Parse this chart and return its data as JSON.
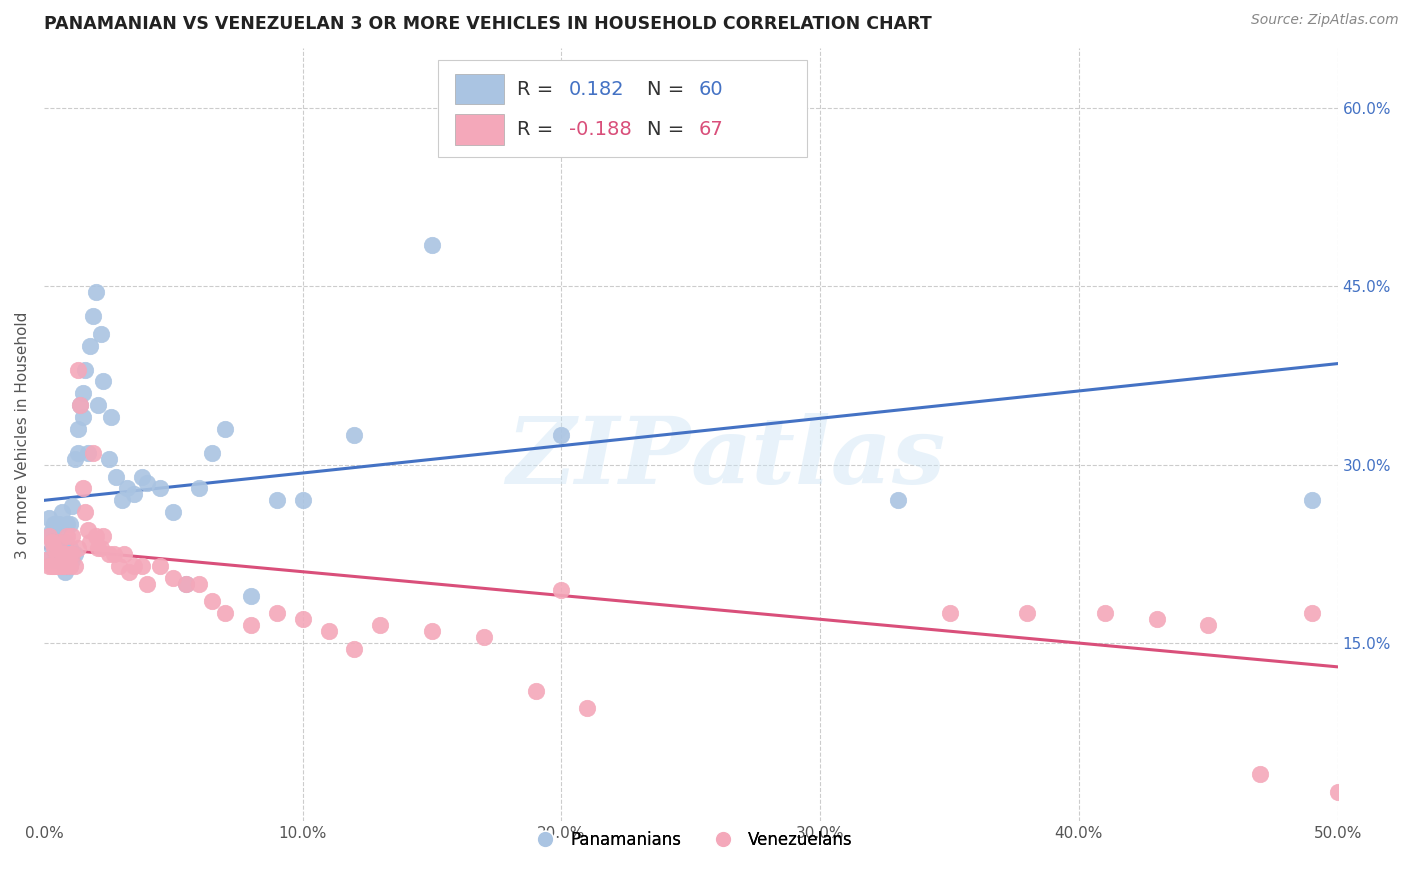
{
  "title": "PANAMANIAN VS VENEZUELAN 3 OR MORE VEHICLES IN HOUSEHOLD CORRELATION CHART",
  "source": "Source: ZipAtlas.com",
  "ylabel": "3 or more Vehicles in Household",
  "watermark": "ZIPatlas",
  "xlim": [
    0.0,
    0.5
  ],
  "ylim": [
    0.0,
    0.65
  ],
  "xticks": [
    0.0,
    0.1,
    0.2,
    0.3,
    0.4,
    0.5
  ],
  "xticklabels": [
    "0.0%",
    "10.0%",
    "20.0%",
    "30.0%",
    "40.0%",
    "50.0%"
  ],
  "yticks_right": [
    0.15,
    0.3,
    0.45,
    0.6
  ],
  "ytick_right_labels": [
    "15.0%",
    "30.0%",
    "45.0%",
    "60.0%"
  ],
  "color_pan": "#aac4e2",
  "color_ven": "#f4a8ba",
  "line_color_pan": "#4472c4",
  "line_color_ven": "#d94f7a",
  "background_color": "#ffffff",
  "pan_scatter_x": [
    0.001,
    0.002,
    0.002,
    0.003,
    0.003,
    0.004,
    0.004,
    0.005,
    0.005,
    0.005,
    0.006,
    0.006,
    0.007,
    0.007,
    0.008,
    0.008,
    0.009,
    0.009,
    0.01,
    0.01,
    0.01,
    0.011,
    0.011,
    0.012,
    0.012,
    0.013,
    0.013,
    0.014,
    0.015,
    0.015,
    0.016,
    0.017,
    0.018,
    0.019,
    0.02,
    0.021,
    0.022,
    0.023,
    0.025,
    0.026,
    0.028,
    0.03,
    0.032,
    0.035,
    0.038,
    0.04,
    0.045,
    0.05,
    0.055,
    0.06,
    0.065,
    0.07,
    0.08,
    0.09,
    0.1,
    0.12,
    0.15,
    0.2,
    0.33,
    0.49
  ],
  "pan_scatter_y": [
    0.22,
    0.24,
    0.255,
    0.23,
    0.245,
    0.22,
    0.25,
    0.225,
    0.23,
    0.245,
    0.225,
    0.25,
    0.22,
    0.26,
    0.21,
    0.235,
    0.215,
    0.25,
    0.215,
    0.23,
    0.25,
    0.22,
    0.265,
    0.225,
    0.305,
    0.31,
    0.33,
    0.35,
    0.34,
    0.36,
    0.38,
    0.31,
    0.4,
    0.425,
    0.445,
    0.35,
    0.41,
    0.37,
    0.305,
    0.34,
    0.29,
    0.27,
    0.28,
    0.275,
    0.29,
    0.285,
    0.28,
    0.26,
    0.2,
    0.28,
    0.31,
    0.33,
    0.19,
    0.27,
    0.27,
    0.325,
    0.485,
    0.325,
    0.27,
    0.27
  ],
  "ven_scatter_x": [
    0.001,
    0.002,
    0.002,
    0.003,
    0.003,
    0.004,
    0.004,
    0.005,
    0.005,
    0.006,
    0.006,
    0.007,
    0.007,
    0.008,
    0.008,
    0.009,
    0.009,
    0.01,
    0.01,
    0.011,
    0.011,
    0.012,
    0.013,
    0.013,
    0.014,
    0.015,
    0.016,
    0.017,
    0.018,
    0.019,
    0.02,
    0.021,
    0.022,
    0.023,
    0.025,
    0.027,
    0.029,
    0.031,
    0.033,
    0.035,
    0.038,
    0.04,
    0.045,
    0.05,
    0.055,
    0.06,
    0.065,
    0.07,
    0.08,
    0.09,
    0.1,
    0.11,
    0.12,
    0.13,
    0.15,
    0.17,
    0.19,
    0.2,
    0.21,
    0.35,
    0.38,
    0.41,
    0.43,
    0.45,
    0.47,
    0.49,
    0.5
  ],
  "ven_scatter_y": [
    0.22,
    0.24,
    0.215,
    0.235,
    0.215,
    0.23,
    0.215,
    0.225,
    0.215,
    0.235,
    0.215,
    0.225,
    0.215,
    0.225,
    0.215,
    0.24,
    0.22,
    0.225,
    0.215,
    0.225,
    0.24,
    0.215,
    0.23,
    0.38,
    0.35,
    0.28,
    0.26,
    0.245,
    0.235,
    0.31,
    0.24,
    0.23,
    0.23,
    0.24,
    0.225,
    0.225,
    0.215,
    0.225,
    0.21,
    0.215,
    0.215,
    0.2,
    0.215,
    0.205,
    0.2,
    0.2,
    0.185,
    0.175,
    0.165,
    0.175,
    0.17,
    0.16,
    0.145,
    0.165,
    0.16,
    0.155,
    0.11,
    0.195,
    0.095,
    0.175,
    0.175,
    0.175,
    0.17,
    0.165,
    0.04,
    0.175,
    0.025
  ]
}
